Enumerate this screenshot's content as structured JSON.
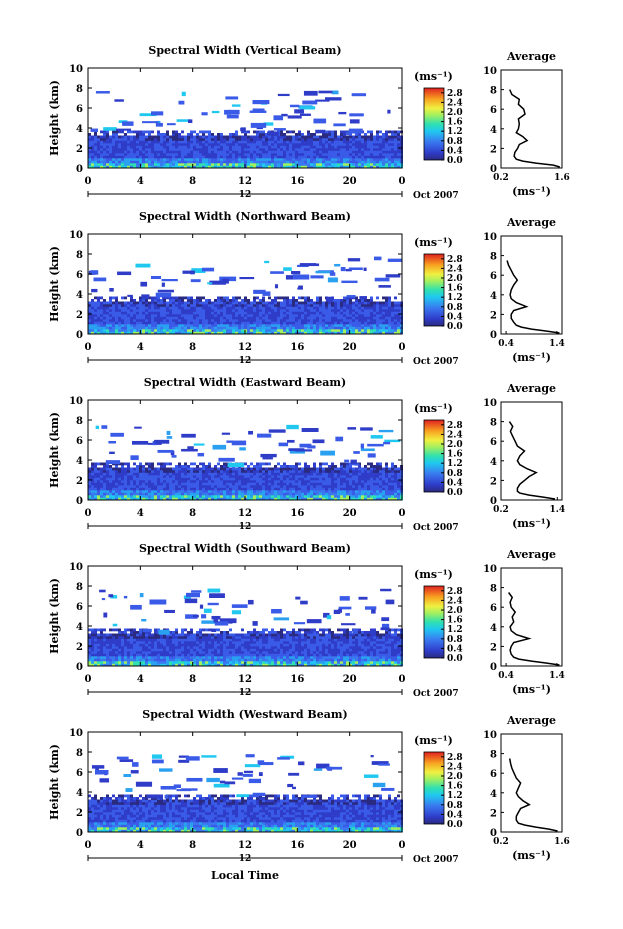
{
  "figure": {
    "xlabel": "Local Time",
    "date_label": "Oct 2007",
    "axis_mid_label": "12",
    "colorbar_unit": "(ms⁻¹)",
    "avg_unit": "(ms⁻¹)",
    "avg_title": "Average",
    "ylabel": "Height (km)"
  },
  "chart_data": [
    {
      "type": "heatmap",
      "title": "Spectral Width (Vertical Beam)",
      "ylabel": "Height (km)",
      "x_ticks": [
        "0",
        "4",
        "8",
        "12",
        "16",
        "20",
        "0"
      ],
      "y_ticks": [
        "0",
        "2",
        "4",
        "6",
        "8",
        "10"
      ],
      "xlim": [
        0,
        24
      ],
      "ylim": [
        0,
        10
      ],
      "colorbar": {
        "ticks": [
          "0.0",
          "0.4",
          "0.8",
          "1.2",
          "1.6",
          "2.0",
          "2.4",
          "2.8"
        ],
        "range": [
          0,
          3.0
        ]
      },
      "average_profile": {
        "xlim": [
          0.2,
          1.6
        ],
        "ylim": [
          0,
          10
        ],
        "x_ticks": [
          "0.2",
          "1.6"
        ],
        "y_ticks": [
          "0",
          "2",
          "4",
          "6",
          "8",
          "10"
        ],
        "heights": [
          0.1,
          0.3,
          0.5,
          0.7,
          0.9,
          1.2,
          1.6,
          2.0,
          2.4,
          2.8,
          3.2,
          3.6,
          4.0,
          4.5,
          5.0,
          5.5,
          6.0,
          6.5,
          7.0,
          7.5,
          8.0
        ],
        "values": [
          1.55,
          1.4,
          1.0,
          0.7,
          0.55,
          0.5,
          0.52,
          0.58,
          0.62,
          0.8,
          0.7,
          0.55,
          0.6,
          0.62,
          0.6,
          0.75,
          0.72,
          0.6,
          0.62,
          0.45,
          0.4
        ]
      }
    },
    {
      "type": "heatmap",
      "title": "Spectral Width (Northward Beam)",
      "ylabel": "Height (km)",
      "x_ticks": [
        "0",
        "4",
        "8",
        "12",
        "16",
        "20",
        "0"
      ],
      "y_ticks": [
        "0",
        "2",
        "4",
        "6",
        "8",
        "10"
      ],
      "xlim": [
        0,
        24
      ],
      "ylim": [
        0,
        10
      ],
      "colorbar": {
        "ticks": [
          "0.0",
          "0.4",
          "0.8",
          "1.2",
          "1.6",
          "2.0",
          "2.4",
          "2.8"
        ],
        "range": [
          0,
          3.0
        ]
      },
      "average_profile": {
        "xlim": [
          0.3,
          1.5
        ],
        "ylim": [
          0,
          10
        ],
        "x_ticks": [
          "0.4",
          "1.4"
        ],
        "y_ticks": [
          "0",
          "2",
          "4",
          "6",
          "8",
          "10"
        ],
        "heights": [
          0.1,
          0.3,
          0.5,
          0.7,
          0.9,
          1.2,
          1.6,
          2.0,
          2.4,
          2.8,
          3.2,
          3.6,
          4.0,
          4.5,
          5.0,
          5.5,
          6.0,
          6.5,
          7.0,
          7.5
        ],
        "values": [
          1.45,
          1.2,
          0.9,
          0.7,
          0.6,
          0.55,
          0.5,
          0.5,
          0.55,
          0.8,
          0.6,
          0.5,
          0.48,
          0.5,
          0.55,
          0.62,
          0.55,
          0.5,
          0.45,
          0.42
        ]
      }
    },
    {
      "type": "heatmap",
      "title": "Spectral Width (Eastward Beam)",
      "ylabel": "Height (km)",
      "x_ticks": [
        "0",
        "4",
        "8",
        "12",
        "16",
        "20",
        "0"
      ],
      "y_ticks": [
        "0",
        "2",
        "4",
        "6",
        "8",
        "10"
      ],
      "xlim": [
        0,
        24
      ],
      "ylim": [
        0,
        10
      ],
      "colorbar": {
        "ticks": [
          "0.0",
          "0.4",
          "0.8",
          "1.2",
          "1.6",
          "2.0",
          "2.4",
          "2.8"
        ],
        "range": [
          0,
          3.0
        ]
      },
      "average_profile": {
        "xlim": [
          0.2,
          1.5
        ],
        "ylim": [
          0,
          10
        ],
        "x_ticks": [
          "0.2",
          "1.4"
        ],
        "y_ticks": [
          "0",
          "2",
          "4",
          "6",
          "8",
          "10"
        ],
        "heights": [
          0.1,
          0.3,
          0.5,
          0.7,
          0.9,
          1.2,
          1.6,
          2.0,
          2.4,
          2.8,
          3.2,
          3.6,
          4.0,
          4.5,
          5.0,
          5.5,
          6.0,
          6.5,
          7.0,
          7.5,
          8.0
        ],
        "values": [
          1.35,
          1.1,
          0.8,
          0.6,
          0.55,
          0.55,
          0.6,
          0.7,
          0.8,
          0.95,
          0.75,
          0.6,
          0.55,
          0.6,
          0.7,
          0.55,
          0.5,
          0.45,
          0.4,
          0.45,
          0.38
        ]
      }
    },
    {
      "type": "heatmap",
      "title": "Spectral Width (Southward Beam)",
      "ylabel": "Height (km)",
      "x_ticks": [
        "0",
        "4",
        "8",
        "12",
        "16",
        "20",
        "0"
      ],
      "y_ticks": [
        "0",
        "2",
        "4",
        "6",
        "8",
        "10"
      ],
      "xlim": [
        0,
        24
      ],
      "ylim": [
        0,
        10
      ],
      "colorbar": {
        "ticks": [
          "0.0",
          "0.4",
          "0.8",
          "1.2",
          "1.6",
          "2.0",
          "2.4",
          "2.8"
        ],
        "range": [
          0,
          3.0
        ]
      },
      "average_profile": {
        "xlim": [
          0.3,
          1.5
        ],
        "ylim": [
          0,
          10
        ],
        "x_ticks": [
          "0.4",
          "1.4"
        ],
        "y_ticks": [
          "0",
          "2",
          "4",
          "6",
          "8",
          "10"
        ],
        "heights": [
          0.1,
          0.3,
          0.5,
          0.7,
          0.9,
          1.2,
          1.6,
          2.0,
          2.4,
          2.8,
          3.2,
          3.6,
          4.0,
          4.5,
          5.0,
          5.5,
          6.0,
          6.5,
          7.0,
          7.5
        ],
        "values": [
          1.45,
          1.2,
          0.9,
          0.65,
          0.55,
          0.5,
          0.48,
          0.5,
          0.55,
          0.85,
          0.6,
          0.5,
          0.48,
          0.55,
          0.52,
          0.58,
          0.5,
          0.48,
          0.52,
          0.45
        ]
      }
    },
    {
      "type": "heatmap",
      "title": "Spectral Width (Westward Beam)",
      "ylabel": "Height (km)",
      "x_ticks": [
        "0",
        "4",
        "8",
        "12",
        "16",
        "20",
        "0"
      ],
      "y_ticks": [
        "0",
        "2",
        "4",
        "6",
        "8",
        "10"
      ],
      "xlim": [
        0,
        24
      ],
      "ylim": [
        0,
        10
      ],
      "colorbar": {
        "ticks": [
          "0.0",
          "0.4",
          "0.8",
          "1.2",
          "1.6",
          "2.0",
          "2.4",
          "2.8"
        ],
        "range": [
          0,
          3.0
        ]
      },
      "average_profile": {
        "xlim": [
          0.2,
          1.6
        ],
        "ylim": [
          0,
          10
        ],
        "x_ticks": [
          "0.2",
          "1.6"
        ],
        "y_ticks": [
          "0",
          "2",
          "4",
          "6",
          "8",
          "10"
        ],
        "heights": [
          0.1,
          0.3,
          0.5,
          0.7,
          0.9,
          1.2,
          1.6,
          2.0,
          2.4,
          2.8,
          3.2,
          3.6,
          4.0,
          4.5,
          5.0,
          5.5,
          6.0,
          6.5,
          7.0,
          7.5
        ],
        "values": [
          1.5,
          1.3,
          1.0,
          0.75,
          0.6,
          0.55,
          0.55,
          0.6,
          0.65,
          0.85,
          0.7,
          0.6,
          0.55,
          0.6,
          0.65,
          0.55,
          0.5,
          0.45,
          0.42,
          0.4
        ]
      }
    }
  ]
}
